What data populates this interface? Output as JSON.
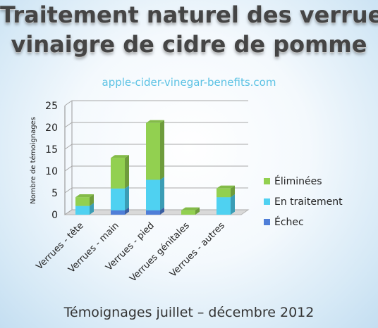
{
  "header": {
    "title_line1": "Traitement naturel des verrues",
    "title_line2": "vinaigre de cidre de pomme",
    "website": "apple-cider-vinegar-benefits.com"
  },
  "footer": {
    "caption": "Témoignages juillet – décembre 2012"
  },
  "colors": {
    "eliminees": "#92d050",
    "en_traitement": "#4fd1f1",
    "echec": "#4f7ed8",
    "grid": "#a8a8a8",
    "floor": "#d9d9d9"
  },
  "chart_data": {
    "type": "bar",
    "stacked": true,
    "three_d": true,
    "title": "",
    "xlabel": "",
    "ylabel": "Nombre de témoignages",
    "ylim": [
      0,
      25
    ],
    "yticks": [
      0,
      5,
      10,
      15,
      20,
      25
    ],
    "grid": true,
    "legend_position": "right",
    "categories": [
      "Verrues - tête",
      "Verrues - main",
      "Verrues - pied",
      "Verrues génitales",
      "Verrues - autres"
    ],
    "series": [
      {
        "name": "Échec",
        "color": "#4f7ed8",
        "values": [
          0,
          1,
          1,
          0,
          0
        ]
      },
      {
        "name": "En traitement",
        "color": "#4fd1f1",
        "values": [
          2,
          5,
          7,
          0,
          4
        ]
      },
      {
        "name": "Éliminées",
        "color": "#92d050",
        "values": [
          2,
          7,
          13,
          1,
          2
        ]
      }
    ]
  }
}
